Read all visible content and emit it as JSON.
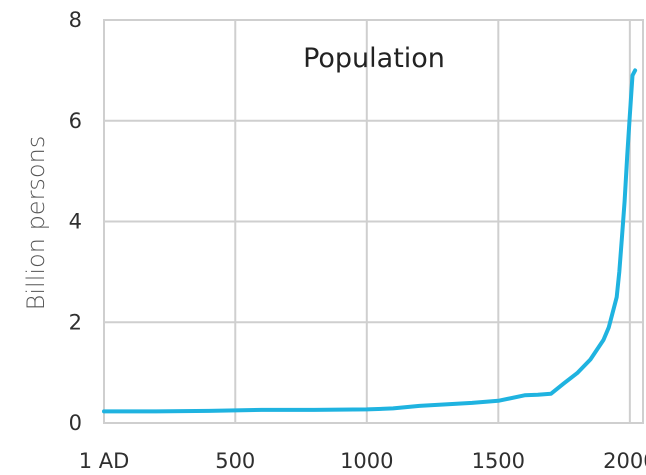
{
  "chart_data": {
    "type": "line",
    "title": "Population",
    "ylabel": "Billion persons",
    "xlabel": "",
    "xlim": [
      1,
      2050
    ],
    "ylim": [
      0,
      8
    ],
    "x_ticks": [
      1,
      500,
      1000,
      1500,
      2000
    ],
    "x_tick_labels": [
      "1 AD",
      "500",
      "1000",
      "1500",
      "2000"
    ],
    "y_ticks": [
      0,
      2,
      4,
      6,
      8
    ],
    "y_tick_labels": [
      "0",
      "2",
      "4",
      "6",
      "8"
    ],
    "grid": true,
    "series": [
      {
        "color": "#1fb3e0",
        "x": [
          1,
          200,
          400,
          500,
          600,
          800,
          1000,
          1100,
          1200,
          1300,
          1400,
          1500,
          1600,
          1650,
          1700,
          1750,
          1800,
          1850,
          1900,
          1920,
          1940,
          1950,
          1960,
          1970,
          1980,
          1990,
          2000,
          2010,
          2020
        ],
        "y": [
          0.23,
          0.23,
          0.24,
          0.25,
          0.26,
          0.26,
          0.27,
          0.29,
          0.34,
          0.37,
          0.4,
          0.44,
          0.55,
          0.56,
          0.58,
          0.79,
          0.99,
          1.26,
          1.65,
          1.9,
          2.3,
          2.5,
          3.0,
          3.7,
          4.4,
          5.3,
          6.1,
          6.9,
          7.0
        ]
      }
    ]
  }
}
